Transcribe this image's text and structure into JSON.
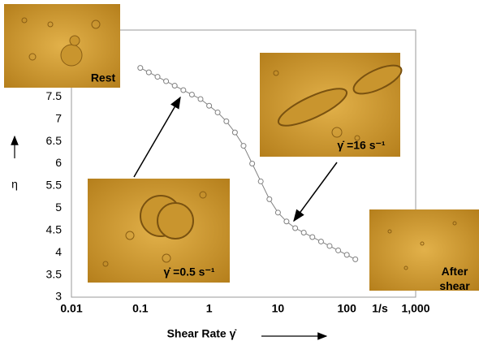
{
  "chart_data": {
    "type": "line",
    "x_label": "Shear Rate γ̇",
    "y_label": "η",
    "x_unit": "1/s",
    "annotations": [
      "Rest",
      "γ̇ =16 s⁻¹",
      "γ̇ =0.5 s⁻¹",
      "After shear"
    ],
    "x": [
      0.1,
      0.133,
      0.178,
      0.237,
      0.316,
      0.422,
      0.562,
      0.75,
      1,
      1.33,
      1.78,
      2.37,
      3.16,
      4.22,
      5.62,
      7.5,
      10,
      13.3,
      17.8,
      23.7,
      31.6,
      42.2,
      56.2,
      75,
      100,
      133
    ],
    "values": [
      8.15,
      8.05,
      7.95,
      7.85,
      7.75,
      7.65,
      7.55,
      7.45,
      7.3,
      7.15,
      6.95,
      6.7,
      6.4,
      6.0,
      5.6,
      5.2,
      4.9,
      4.7,
      4.55,
      4.45,
      4.35,
      4.25,
      4.15,
      4.05,
      3.95,
      3.85
    ],
    "color": "#808080",
    "x_log": true,
    "xlim": [
      0.01,
      1000
    ],
    "xticks": [
      0.01,
      0.1,
      1,
      10,
      100,
      {
        "value": 1000,
        "label": "1,000"
      }
    ],
    "ylim": [
      3,
      9
    ],
    "yticks": [
      3,
      3.5,
      4,
      4.5,
      5,
      5.5,
      6,
      6.5,
      7,
      7.5
    ]
  }
}
